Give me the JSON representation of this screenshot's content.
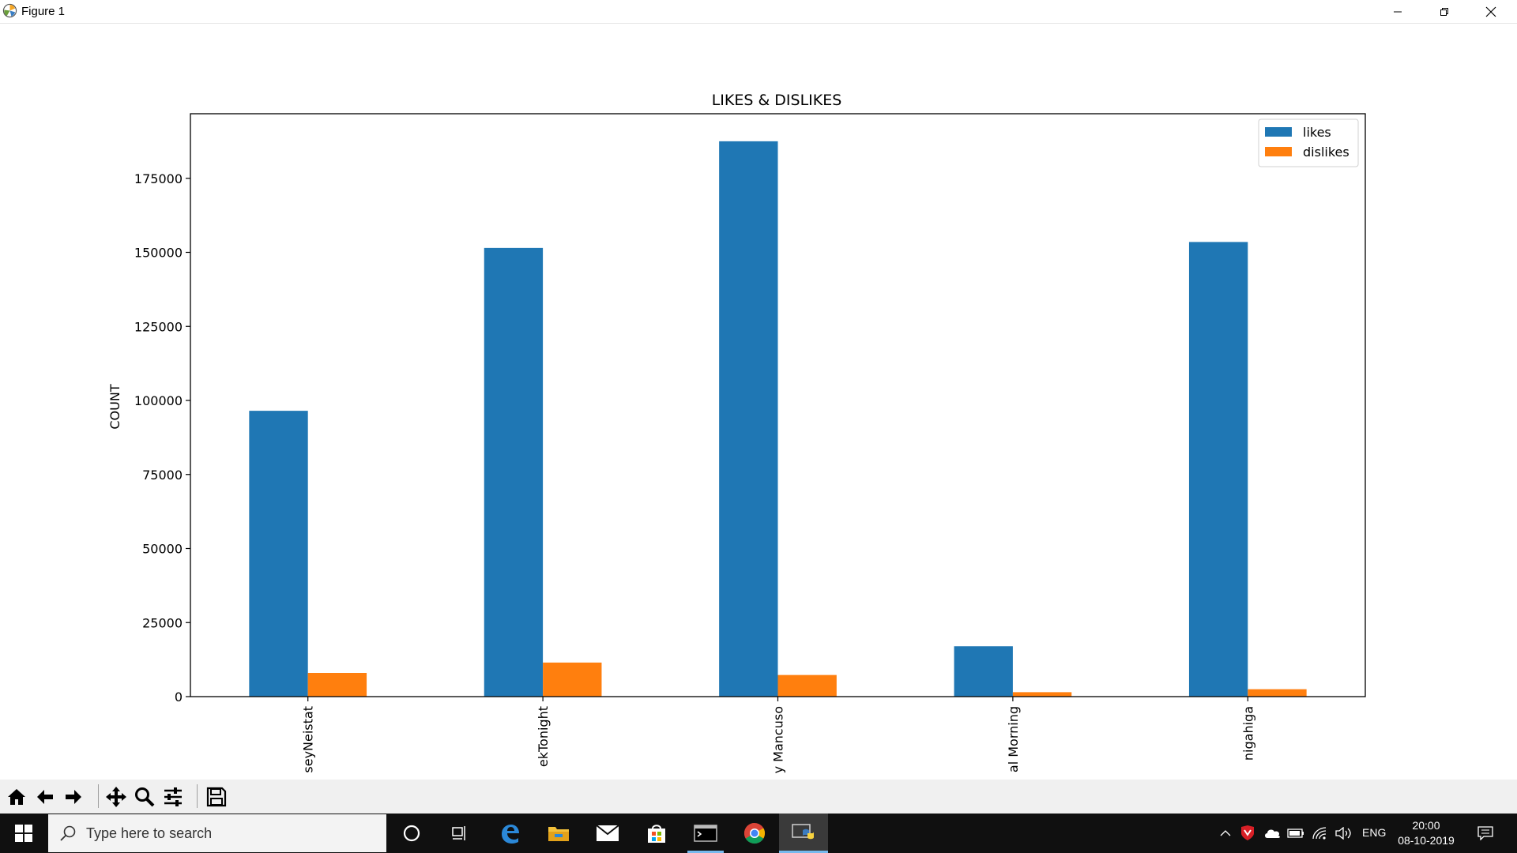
{
  "window": {
    "title": "Figure 1",
    "controls": [
      "minimize",
      "maximize",
      "close"
    ]
  },
  "chart_data": {
    "type": "bar",
    "title": "LIKES & DISLIKES",
    "xlabel": "",
    "ylabel": "COUNT",
    "categories": [
      "seyNeistat",
      "ekTonight",
      "y Mancuso",
      "al Morning",
      "nigahiga"
    ],
    "series": [
      {
        "name": "likes",
        "color": "#1f77b4",
        "values": [
          96500,
          151500,
          187500,
          17000,
          153500
        ]
      },
      {
        "name": "dislikes",
        "color": "#ff7f0e",
        "values": [
          8000,
          11500,
          7300,
          1500,
          2500
        ]
      }
    ],
    "ylim": [
      0,
      196800
    ],
    "yticks": [
      0,
      25000,
      50000,
      75000,
      100000,
      125000,
      150000,
      175000
    ],
    "legend_position": "top-right",
    "grid": false
  },
  "toolbar": {
    "buttons": [
      "home-icon",
      "back-icon",
      "forward-icon",
      "pan-icon",
      "zoom-icon",
      "configure-icon",
      "save-icon"
    ]
  },
  "taskbar": {
    "search_placeholder": "Type here to search",
    "apps": [
      "cortana-icon",
      "task-view-icon",
      "edge-icon",
      "file-explorer-icon",
      "mail-icon",
      "store-icon",
      "terminal-icon",
      "chrome-icon",
      "python-icon"
    ],
    "language": "ENG",
    "time": "20:00",
    "date": "08-10-2019"
  }
}
